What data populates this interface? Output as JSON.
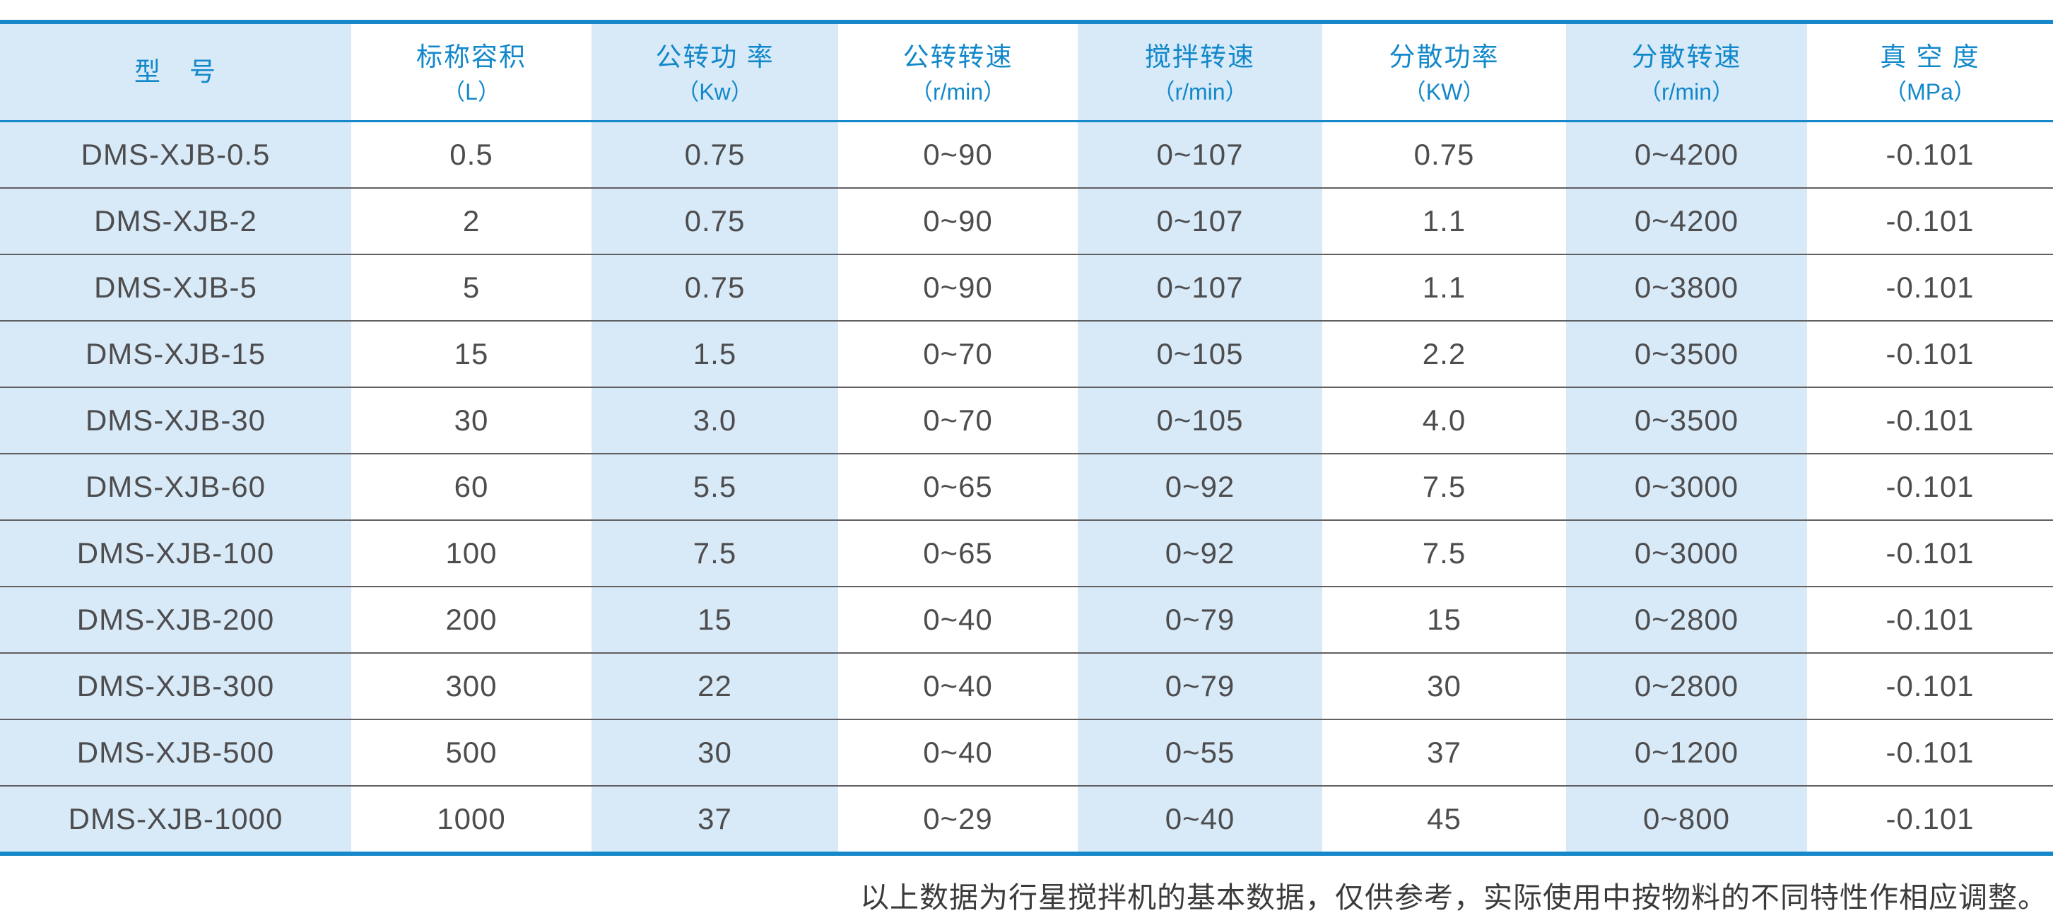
{
  "colors": {
    "accent_blue": "#1788c9",
    "header_text_blue": "#1288cb",
    "stripe_light_blue": "#d8eaf7",
    "body_text": "#4d4d4f",
    "row_separator": "#606062",
    "note_text": "#3b3b3b"
  },
  "table": {
    "columns": [
      {
        "title": "型　号",
        "unit": ""
      },
      {
        "title": "标称容积",
        "unit": "（L）"
      },
      {
        "title": "公转功 率",
        "unit": "（Kw）"
      },
      {
        "title": "公转转速",
        "unit": "（r/min）"
      },
      {
        "title": "搅拌转速",
        "unit": "（r/min）"
      },
      {
        "title": "分散功率",
        "unit": "（KW）"
      },
      {
        "title": "分散转速",
        "unit": "（r/min）"
      },
      {
        "title": "真 空 度",
        "unit": "（MPa）"
      }
    ],
    "rows": [
      {
        "cells": [
          "DMS-XJB-0.5",
          "0.5",
          "0.75",
          "0~90",
          "0~107",
          "0.75",
          "0~4200",
          "-0.101"
        ]
      },
      {
        "cells": [
          "DMS-XJB-2",
          "2",
          "0.75",
          "0~90",
          "0~107",
          "1.1",
          "0~4200",
          "-0.101"
        ]
      },
      {
        "cells": [
          "DMS-XJB-5",
          "5",
          "0.75",
          "0~90",
          "0~107",
          "1.1",
          "0~3800",
          "-0.101"
        ]
      },
      {
        "cells": [
          "DMS-XJB-15",
          "15",
          "1.5",
          "0~70",
          "0~105",
          "2.2",
          "0~3500",
          "-0.101"
        ]
      },
      {
        "cells": [
          "DMS-XJB-30",
          "30",
          "3.0",
          "0~70",
          "0~105",
          "4.0",
          "0~3500",
          "-0.101"
        ]
      },
      {
        "cells": [
          "DMS-XJB-60",
          "60",
          "5.5",
          "0~65",
          "0~92",
          "7.5",
          "0~3000",
          "-0.101"
        ]
      },
      {
        "cells": [
          "DMS-XJB-100",
          "100",
          "7.5",
          "0~65",
          "0~92",
          "7.5",
          "0~3000",
          "-0.101"
        ]
      },
      {
        "cells": [
          "DMS-XJB-200",
          "200",
          "15",
          "0~40",
          "0~79",
          "15",
          "0~2800",
          "-0.101"
        ]
      },
      {
        "cells": [
          "DMS-XJB-300",
          "300",
          "22",
          "0~40",
          "0~79",
          "30",
          "0~2800",
          "-0.101"
        ]
      },
      {
        "cells": [
          "DMS-XJB-500",
          "500",
          "30",
          "0~40",
          "0~55",
          "37",
          "0~1200",
          "-0.101"
        ]
      },
      {
        "cells": [
          "DMS-XJB-1000",
          "1000",
          "37",
          "0~29",
          "0~40",
          "45",
          "0~800",
          "-0.101"
        ]
      }
    ]
  },
  "footer": {
    "note": "以上数据为行星搅拌机的基本数据，仅供参考，实际使用中按物料的不同特性作相应调整。"
  }
}
